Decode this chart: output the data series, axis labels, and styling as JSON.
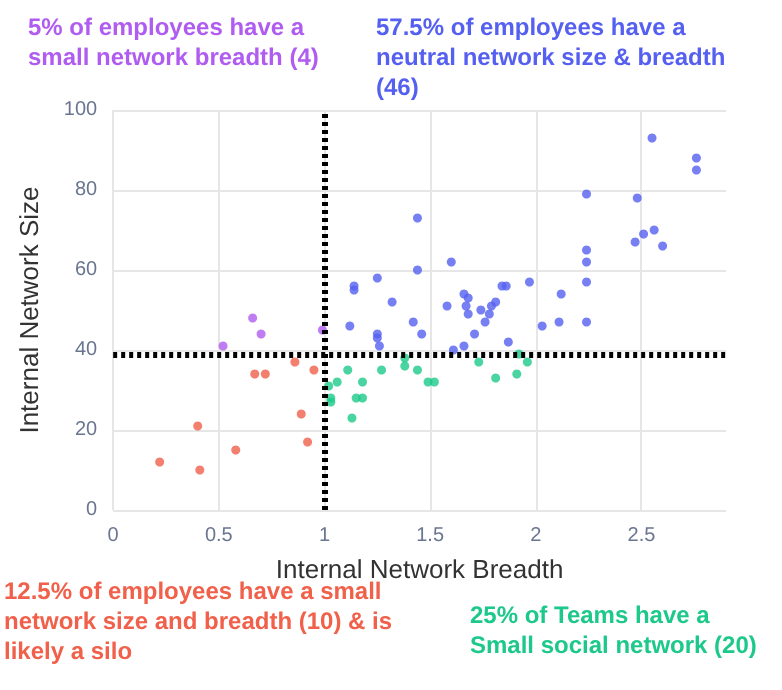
{
  "chart_data": {
    "type": "scatter",
    "xlabel": "Internal Network Breadth",
    "ylabel": "Internal Network Size",
    "xlim": [
      0,
      2.9
    ],
    "xticks": [
      0,
      0.5,
      1,
      1.5,
      2,
      2.5
    ],
    "ylim": [
      0,
      100
    ],
    "yticks": [
      0,
      20,
      40,
      60,
      80,
      100
    ],
    "grid": true,
    "marker": "circle",
    "ref_lines": [
      {
        "axis": "x",
        "value": 1,
        "color": "#000000",
        "line_style": "dotted"
      },
      {
        "axis": "y",
        "value": 39,
        "color": "#000000",
        "line_style": "dotted"
      }
    ],
    "annotations": [
      "5% of employees have a small network breadth (4)",
      "57.5% of employees have a neutral network size & breadth  (46)",
      "12.5% of employees have a small network size and breadth (10) & is likely a silo",
      "25% of Teams have a Small social network (20)"
    ],
    "series": [
      {
        "color": "#b05cf0",
        "x": [
          0.66,
          0.7,
          0.99,
          0.52
        ],
        "values": [
          48,
          44,
          45,
          41
        ]
      },
      {
        "color": "#5560f0",
        "x": [
          1.12,
          1.14,
          1.14,
          1.25,
          1.44,
          1.44,
          1.32,
          1.42,
          1.25,
          1.46,
          1.6,
          1.58,
          1.66,
          1.68,
          1.67,
          1.68,
          1.74,
          1.79,
          1.81,
          1.78,
          1.76,
          1.71,
          1.84,
          1.86,
          1.97,
          2.12,
          2.03,
          2.11,
          2.24,
          2.24,
          2.24,
          2.24,
          2.24,
          2.48,
          2.47,
          2.51,
          2.55,
          2.56,
          1.25,
          1.26,
          1.61,
          1.66,
          1.87,
          2.76,
          2.76,
          2.6
        ],
        "values": [
          46,
          56,
          55,
          58,
          73,
          60,
          52,
          47,
          44,
          44,
          62,
          51,
          54,
          53,
          51,
          49,
          50,
          51,
          52,
          49,
          47,
          44,
          56,
          56,
          57,
          54,
          46,
          47,
          79,
          65,
          62,
          57,
          47,
          78,
          67,
          69,
          93,
          70,
          43,
          41,
          40,
          41,
          42,
          88,
          85,
          66
        ]
      },
      {
        "color": "#f0604a",
        "x": [
          0.22,
          0.4,
          0.41,
          0.58,
          0.67,
          0.72,
          0.86,
          0.95,
          0.89,
          0.92
        ],
        "values": [
          12,
          21,
          10,
          15,
          34,
          34,
          37,
          35,
          24,
          17
        ]
      },
      {
        "color": "#1cc98a",
        "x": [
          1.02,
          1.06,
          1.03,
          1.03,
          1.11,
          1.15,
          1.18,
          1.18,
          1.13,
          1.27,
          1.38,
          1.38,
          1.44,
          1.49,
          1.52,
          1.73,
          1.81,
          1.91,
          1.92,
          1.96
        ],
        "values": [
          31,
          32,
          28,
          27,
          35,
          28,
          32,
          28,
          23,
          35,
          38,
          36,
          35,
          32,
          32,
          37,
          33,
          34,
          39,
          37
        ]
      }
    ]
  }
}
